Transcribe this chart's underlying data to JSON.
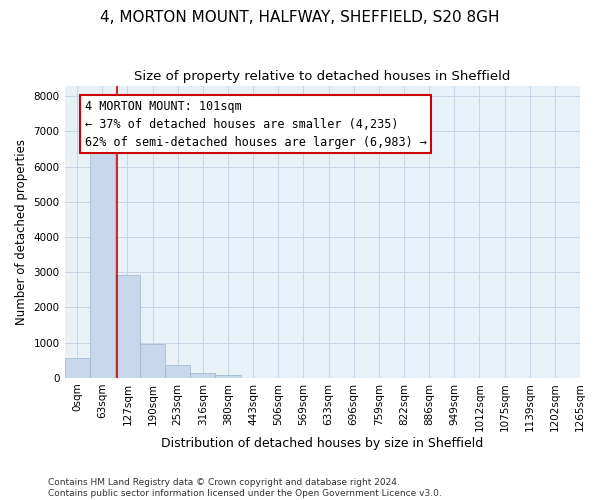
{
  "title": "4, MORTON MOUNT, HALFWAY, SHEFFIELD, S20 8GH",
  "subtitle": "Size of property relative to detached houses in Sheffield",
  "xlabel": "Distribution of detached houses by size in Sheffield",
  "ylabel": "Number of detached properties",
  "bar_values": [
    560,
    6400,
    2920,
    960,
    360,
    150,
    70,
    0,
    0,
    0,
    0,
    0,
    0,
    0,
    0,
    0,
    0,
    0,
    0,
    0
  ],
  "bin_labels": [
    "0sqm",
    "63sqm",
    "127sqm",
    "190sqm",
    "253sqm",
    "316sqm",
    "380sqm",
    "443sqm",
    "506sqm",
    "569sqm",
    "633sqm",
    "696sqm",
    "759sqm",
    "822sqm",
    "886sqm",
    "949sqm",
    "1012sqm",
    "1075sqm",
    "1139sqm",
    "1202sqm",
    "1265sqm"
  ],
  "bar_color": "#c8d8ec",
  "bar_edge_color": "#9ab4cc",
  "vline_x": 1.58,
  "vline_color": "#cc0000",
  "annotation_text": "4 MORTON MOUNT: 101sqm\n← 37% of detached houses are smaller (4,235)\n62% of semi-detached houses are larger (6,983) →",
  "annotation_box_color": "#ffffff",
  "annotation_box_edge": "#cc0000",
  "ylim": [
    0,
    8300
  ],
  "yticks": [
    0,
    1000,
    2000,
    3000,
    4000,
    5000,
    6000,
    7000,
    8000
  ],
  "grid_color": "#c8d4e8",
  "background_color": "#e8f0f8",
  "footer_text": "Contains HM Land Registry data © Crown copyright and database right 2024.\nContains public sector information licensed under the Open Government Licence v3.0.",
  "title_fontsize": 11,
  "subtitle_fontsize": 9.5,
  "xlabel_fontsize": 9,
  "ylabel_fontsize": 8.5,
  "tick_fontsize": 7.5,
  "annot_fontsize": 8.5
}
